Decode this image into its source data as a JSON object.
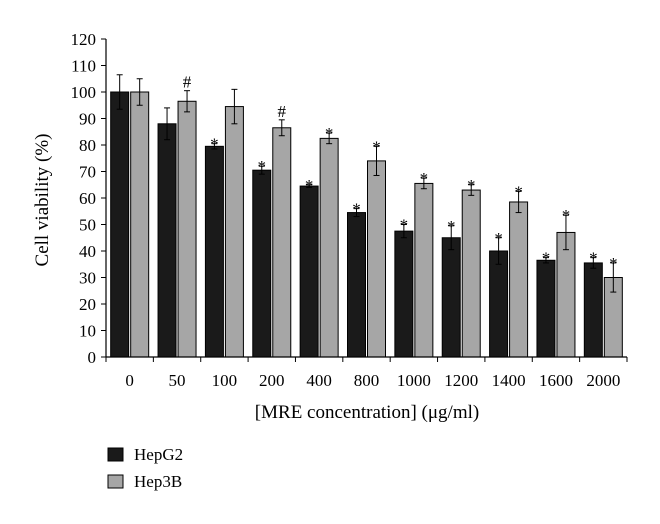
{
  "colors": {
    "HepG2": "#1a1a1a",
    "Hep3B": "#a6a6a6",
    "axis": "#000000"
  },
  "chart_data": {
    "type": "bar",
    "xlabel": "[MRE concentration] (μg/ml)",
    "ylabel": "Cell viability (%)",
    "ylim": [
      0,
      120
    ],
    "yticks": [
      0,
      10,
      20,
      30,
      40,
      50,
      60,
      70,
      80,
      90,
      100,
      110,
      120
    ],
    "categories": [
      "0",
      "50",
      "100",
      "200",
      "400",
      "800",
      "1000",
      "1200",
      "1400",
      "1600",
      "2000"
    ],
    "grid": false,
    "legend_position": "bottom-left",
    "series": [
      {
        "name": "HepG2",
        "values": [
          100,
          88,
          79.5,
          70.5,
          64.5,
          54.5,
          47.5,
          45,
          40,
          36.5,
          35.5
        ],
        "errors": [
          6.5,
          6,
          1,
          1.5,
          0.5,
          1.5,
          2.5,
          4.5,
          5,
          1,
          2
        ],
        "markers": [
          "",
          "",
          "*",
          "*",
          "*",
          "*",
          "*",
          "*",
          "*",
          "*",
          "*"
        ]
      },
      {
        "name": "Hep3B",
        "values": [
          100,
          96.5,
          94.5,
          86.5,
          82.5,
          74,
          65.5,
          63,
          58.5,
          47,
          30
        ],
        "errors": [
          5,
          4,
          6.5,
          3,
          2,
          5.5,
          2,
          2,
          4,
          6.5,
          5.5
        ],
        "markers": [
          "",
          "#",
          "",
          "#",
          "*",
          "*",
          "*",
          "*",
          "*",
          "*",
          "*"
        ]
      }
    ]
  }
}
